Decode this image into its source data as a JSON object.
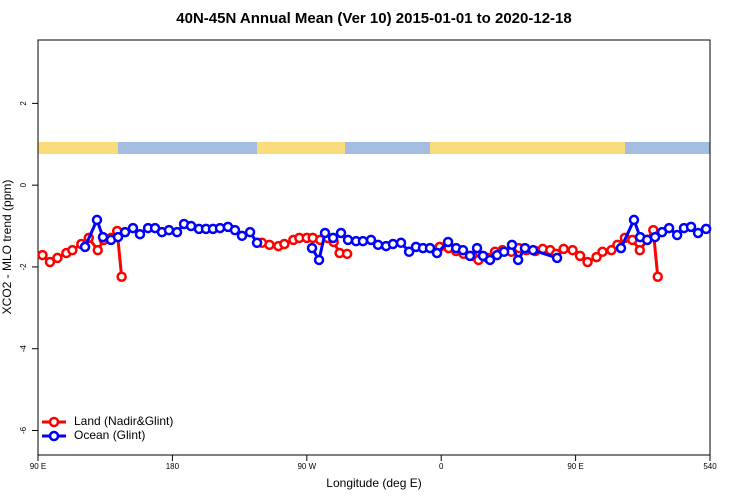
{
  "chart_data": {
    "type": "line",
    "title": "40N-45N Annual Mean (Ver 10)   2015-01-01 to 2020-12-18",
    "xlabel": "Longitude (deg E)",
    "ylabel": "XCO2 - MLO trend (ppm)",
    "xlim": [
      90,
      540
    ],
    "ylim": [
      -6.6,
      3.55
    ],
    "xticks": [
      {
        "value": 90,
        "label": "90 E"
      },
      180,
      {
        "value": 270,
        "label": "90 W"
      },
      {
        "value": 360,
        "label": "0"
      },
      {
        "value": 450,
        "label": "90 E"
      },
      540
    ],
    "yticks": [
      -6,
      -4,
      -2,
      0,
      2
    ],
    "legend": "bottom-left",
    "series": [
      {
        "name": "Land (Nadir&Glint)",
        "color": "#ff0000",
        "x": [
          93,
          98,
          103,
          109,
          113,
          119,
          124,
          130,
          134,
          139,
          143,
          146,
          null,
          240,
          245,
          251,
          255,
          261,
          265,
          270,
          274,
          279,
          284,
          288,
          292,
          297,
          null,
          359,
          365,
          370,
          375,
          381,
          385,
          391,
          396,
          401,
          407,
          412,
          417,
          423,
          428,
          433,
          437,
          442,
          448,
          453,
          458,
          464,
          468,
          474,
          478,
          483,
          488,
          493,
          498,
          502,
          505
        ],
        "values": [
          -1.71,
          -1.88,
          -1.78,
          -1.66,
          -1.59,
          -1.44,
          -1.29,
          -1.59,
          -1.34,
          -1.29,
          -1.12,
          -2.24,
          null,
          -1.41,
          -1.46,
          -1.49,
          -1.44,
          -1.34,
          -1.29,
          -1.29,
          -1.29,
          -1.34,
          -1.29,
          -1.39,
          -1.66,
          -1.68,
          null,
          -1.51,
          -1.54,
          -1.61,
          -1.68,
          -1.73,
          -1.83,
          -1.78,
          -1.63,
          -1.59,
          -1.63,
          -1.54,
          -1.59,
          -1.61,
          -1.56,
          -1.59,
          -1.68,
          -1.56,
          -1.59,
          -1.73,
          -1.88,
          -1.76,
          -1.63,
          -1.59,
          -1.46,
          -1.29,
          -1.34,
          -1.59,
          -1.34,
          -1.1,
          -2.24
        ]
      },
      {
        "name": "Ocean (Glint)",
        "color": "#0000ff",
        "x": [
          121.5,
          129.5,
          133.5,
          138.9,
          143.6,
          148.3,
          153.6,
          158.3,
          163.7,
          168.4,
          173,
          177.7,
          183.1,
          187.8,
          192.5,
          197.8,
          202.5,
          207.2,
          211.9,
          217.2,
          221.9,
          226.6,
          232,
          236.7,
          null,
          273.5,
          278.2,
          282.2,
          287.6,
          292.9,
          297.6,
          303,
          307.6,
          313,
          317.7,
          323.1,
          327.7,
          333.1,
          338.5,
          343.1,
          347.8,
          352.5,
          357.2,
          364.6,
          370,
          374.6,
          379.3,
          384,
          388,
          392.7,
          397.4,
          402.1,
          407.4,
          411.5,
          416.1,
          421.5,
          437.6,
          null,
          480.4,
          489.1,
          493.2,
          497.9,
          503.2,
          507.9,
          512.6,
          518,
          522.6,
          527.3,
          532,
          537.4
        ],
        "values": [
          -1.51,
          -0.85,
          -1.27,
          -1.34,
          -1.27,
          -1.15,
          -1.05,
          -1.2,
          -1.05,
          -1.05,
          -1.15,
          -1.1,
          -1.15,
          -0.95,
          -1.0,
          -1.07,
          -1.07,
          -1.07,
          -1.05,
          -1.02,
          -1.1,
          -1.24,
          -1.15,
          -1.41,
          null,
          -1.54,
          -1.83,
          -1.17,
          -1.29,
          -1.17,
          -1.34,
          -1.37,
          -1.37,
          -1.34,
          -1.46,
          -1.49,
          -1.44,
          -1.41,
          -1.63,
          -1.51,
          -1.54,
          -1.54,
          -1.66,
          -1.39,
          -1.54,
          -1.59,
          -1.73,
          -1.54,
          -1.73,
          -1.83,
          -1.71,
          -1.63,
          -1.46,
          -1.83,
          -1.54,
          -1.59,
          -1.78,
          null,
          -1.54,
          -0.85,
          -1.27,
          -1.34,
          -1.27,
          -1.15,
          -1.05,
          -1.22,
          -1.05,
          -1.02,
          -1.17,
          -1.07
        ]
      }
    ]
  }
}
